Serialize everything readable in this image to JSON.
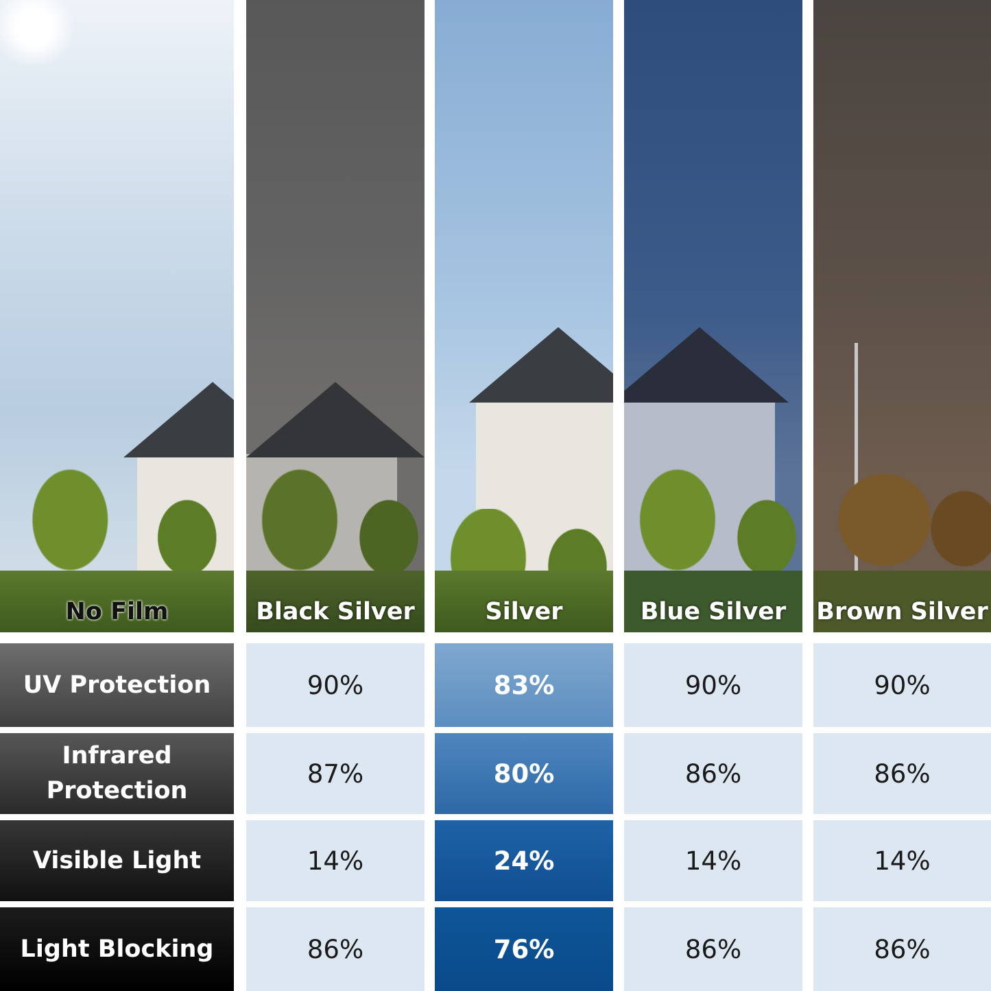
{
  "columns": [
    {
      "name": "No Film"
    },
    {
      "name": "Black Silver"
    },
    {
      "name": "Silver"
    },
    {
      "name": "Blue Silver"
    },
    {
      "name": "Brown Silver"
    }
  ],
  "rows": [
    {
      "label": "UV Protection",
      "values": [
        "90%",
        "83%",
        "90%",
        "90%"
      ]
    },
    {
      "label": "Infrared Protection",
      "values": [
        "87%",
        "80%",
        "86%",
        "86%"
      ]
    },
    {
      "label": "Visible Light",
      "values": [
        "14%",
        "24%",
        "14%",
        "14%"
      ]
    },
    {
      "label": "Light Blocking",
      "values": [
        "86%",
        "76%",
        "86%",
        "86%"
      ]
    }
  ],
  "colors": {
    "cell": "#dde7f1",
    "highlight": "#1d5fa3"
  }
}
